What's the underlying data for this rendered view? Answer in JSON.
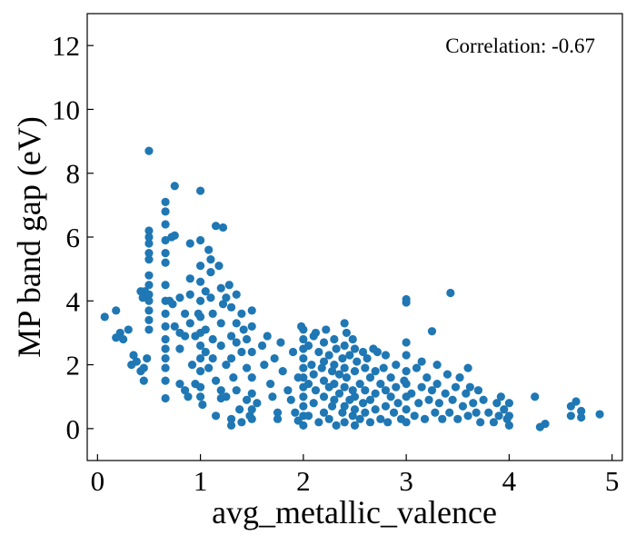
{
  "chart_data": {
    "type": "scatter",
    "title": "",
    "xlabel": "avg_metallic_valence",
    "ylabel": "MP band gap (eV)",
    "annotation": "Correlation: -0.67",
    "xlim": [
      -0.1,
      5.1
    ],
    "ylim": [
      -1,
      13
    ],
    "xticks": [
      0,
      1,
      2,
      3,
      4,
      5
    ],
    "yticks": [
      0,
      2,
      4,
      6,
      8,
      10,
      12
    ],
    "grid": false,
    "marker_color": "#1f77b4",
    "series": [
      {
        "points": [
          [
            0.07,
            3.5
          ],
          [
            0.18,
            2.85
          ],
          [
            0.18,
            3.7
          ],
          [
            0.22,
            3.0
          ],
          [
            0.25,
            2.8
          ],
          [
            0.3,
            3.1
          ],
          [
            0.33,
            2.0
          ],
          [
            0.35,
            2.3
          ],
          [
            0.38,
            2.1
          ],
          [
            0.42,
            1.8
          ],
          [
            0.45,
            1.5
          ],
          [
            0.45,
            1.9
          ],
          [
            0.48,
            2.2
          ],
          [
            0.5,
            8.7
          ],
          [
            0.42,
            4.3
          ],
          [
            0.44,
            4.1
          ],
          [
            0.46,
            4.3
          ],
          [
            0.5,
            4.2
          ],
          [
            0.5,
            4.0
          ],
          [
            0.5,
            3.7
          ],
          [
            0.5,
            3.4
          ],
          [
            0.5,
            3.1
          ],
          [
            0.5,
            5.5
          ],
          [
            0.5,
            5.8
          ],
          [
            0.5,
            6.0
          ],
          [
            0.5,
            6.2
          ],
          [
            0.5,
            5.3
          ],
          [
            0.5,
            4.8
          ],
          [
            0.5,
            4.5
          ],
          [
            0.66,
            7.1
          ],
          [
            0.66,
            6.8
          ],
          [
            0.66,
            6.4
          ],
          [
            0.66,
            5.9
          ],
          [
            0.66,
            5.5
          ],
          [
            0.66,
            5.2
          ],
          [
            0.66,
            4.5
          ],
          [
            0.66,
            4.0
          ],
          [
            0.66,
            3.6
          ],
          [
            0.66,
            3.2
          ],
          [
            0.66,
            2.8
          ],
          [
            0.66,
            2.5
          ],
          [
            0.66,
            2.2
          ],
          [
            0.66,
            1.9
          ],
          [
            0.66,
            1.5
          ],
          [
            0.66,
            0.95
          ],
          [
            0.75,
            7.6
          ],
          [
            0.72,
            6.0
          ],
          [
            0.75,
            6.05
          ],
          [
            0.7,
            4.0
          ],
          [
            0.73,
            3.9
          ],
          [
            0.75,
            3.2
          ],
          [
            0.8,
            4.1
          ],
          [
            0.8,
            3.0
          ],
          [
            0.8,
            2.5
          ],
          [
            0.8,
            1.4
          ],
          [
            0.85,
            1.2
          ],
          [
            0.85,
            3.6
          ],
          [
            0.85,
            2.9
          ],
          [
            0.88,
            1.0
          ],
          [
            0.9,
            3.3
          ],
          [
            0.9,
            5.8
          ],
          [
            0.9,
            4.7
          ],
          [
            0.9,
            4.2
          ],
          [
            0.92,
            2.0
          ],
          [
            0.95,
            1.4
          ],
          [
            0.95,
            2.9
          ],
          [
            0.98,
            3.6
          ],
          [
            1.0,
            7.45
          ],
          [
            1.0,
            5.9
          ],
          [
            1.0,
            5.1
          ],
          [
            1.0,
            4.6
          ],
          [
            1.0,
            4.0
          ],
          [
            1.0,
            3.5
          ],
          [
            1.0,
            3.0
          ],
          [
            1.0,
            2.6
          ],
          [
            1.0,
            2.2
          ],
          [
            1.0,
            1.8
          ],
          [
            1.0,
            1.3
          ],
          [
            1.0,
            1.0
          ],
          [
            1.02,
            0.75
          ],
          [
            1.05,
            4.3
          ],
          [
            1.05,
            3.1
          ],
          [
            1.05,
            2.4
          ],
          [
            1.08,
            1.9
          ],
          [
            1.08,
            5.6
          ],
          [
            1.1,
            5.3
          ],
          [
            1.1,
            4.9
          ],
          [
            1.1,
            4.1
          ],
          [
            1.12,
            3.6
          ],
          [
            1.12,
            2.8
          ],
          [
            1.12,
            2.2
          ],
          [
            1.15,
            1.5
          ],
          [
            1.15,
            0.4
          ],
          [
            1.15,
            6.35
          ],
          [
            1.18,
            5.1
          ],
          [
            1.2,
            4.4
          ],
          [
            1.2,
            3.3
          ],
          [
            1.2,
            2.6
          ],
          [
            1.2,
            1.2
          ],
          [
            1.2,
            0.95
          ],
          [
            1.22,
            6.3
          ],
          [
            1.22,
            3.9
          ],
          [
            1.25,
            4.1
          ],
          [
            1.25,
            2.0
          ],
          [
            1.25,
            1.0
          ],
          [
            1.28,
            4.5
          ],
          [
            1.3,
            3.8
          ],
          [
            1.3,
            2.9
          ],
          [
            1.3,
            2.2
          ],
          [
            1.3,
            0.3
          ],
          [
            1.3,
            0.1
          ],
          [
            1.32,
            1.6
          ],
          [
            1.35,
            4.2
          ],
          [
            1.35,
            3.3
          ],
          [
            1.35,
            2.7
          ],
          [
            1.35,
            1.2
          ],
          [
            1.38,
            0.6
          ],
          [
            1.4,
            3.6
          ],
          [
            1.4,
            2.4
          ],
          [
            1.4,
            0.2
          ],
          [
            1.42,
            3.1
          ],
          [
            1.45,
            2.8
          ],
          [
            1.45,
            1.9
          ],
          [
            1.45,
            0.9
          ],
          [
            1.48,
            0.4
          ],
          [
            1.5,
            3.7
          ],
          [
            1.5,
            3.2
          ],
          [
            1.5,
            2.4
          ],
          [
            1.5,
            1.6
          ],
          [
            1.5,
            1.1
          ],
          [
            1.5,
            0.6
          ],
          [
            1.5,
            0.3
          ],
          [
            1.55,
            0.8
          ],
          [
            1.6,
            2.6
          ],
          [
            1.62,
            2.0
          ],
          [
            1.65,
            2.9
          ],
          [
            1.68,
            1.4
          ],
          [
            1.7,
            1.0
          ],
          [
            1.72,
            2.2
          ],
          [
            1.75,
            0.5
          ],
          [
            1.75,
            0.3
          ],
          [
            1.78,
            2.7
          ],
          [
            1.8,
            1.8
          ],
          [
            1.85,
            1.2
          ],
          [
            1.88,
            0.9
          ],
          [
            1.9,
            2.4
          ],
          [
            1.92,
            0.5
          ],
          [
            1.95,
            1.6
          ],
          [
            1.95,
            0.25
          ],
          [
            1.98,
            3.2
          ],
          [
            2.0,
            3.1
          ],
          [
            2.0,
            2.8
          ],
          [
            2.0,
            2.5
          ],
          [
            2.0,
            2.2
          ],
          [
            2.0,
            1.9
          ],
          [
            2.0,
            1.6
          ],
          [
            2.0,
            1.3
          ],
          [
            2.0,
            1.0
          ],
          [
            2.0,
            0.7
          ],
          [
            2.0,
            0.4
          ],
          [
            2.0,
            0.1
          ],
          [
            2.05,
            2.6
          ],
          [
            2.05,
            1.4
          ],
          [
            2.05,
            0.4
          ],
          [
            2.08,
            2.0
          ],
          [
            2.1,
            2.9
          ],
          [
            2.1,
            1.7
          ],
          [
            2.1,
            0.8
          ],
          [
            2.12,
            3.0
          ],
          [
            2.12,
            1.2
          ],
          [
            2.15,
            2.4
          ],
          [
            2.15,
            0.2
          ],
          [
            2.18,
            1.9
          ],
          [
            2.2,
            2.7
          ],
          [
            2.2,
            2.1
          ],
          [
            2.2,
            1.5
          ],
          [
            2.2,
            1.0
          ],
          [
            2.2,
            0.5
          ],
          [
            2.22,
            3.1
          ],
          [
            2.25,
            2.3
          ],
          [
            2.25,
            1.3
          ],
          [
            2.25,
            0.3
          ],
          [
            2.28,
            1.8
          ],
          [
            2.28,
            0.7
          ],
          [
            2.3,
            2.8
          ],
          [
            2.3,
            2.0
          ],
          [
            2.3,
            1.4
          ],
          [
            2.3,
            0.9
          ],
          [
            2.32,
            2.5
          ],
          [
            2.32,
            0.1
          ],
          [
            2.35,
            1.7
          ],
          [
            2.35,
            1.1
          ],
          [
            2.38,
            2.2
          ],
          [
            2.38,
            0.5
          ],
          [
            2.4,
            3.3
          ],
          [
            2.4,
            2.6
          ],
          [
            2.4,
            1.9
          ],
          [
            2.4,
            1.3
          ],
          [
            2.4,
            0.7
          ],
          [
            2.4,
            0.2
          ],
          [
            2.42,
            3.0
          ],
          [
            2.42,
            1.6
          ],
          [
            2.45,
            2.3
          ],
          [
            2.45,
            0.9
          ],
          [
            2.48,
            2.8
          ],
          [
            2.48,
            1.2
          ],
          [
            2.48,
            0.4
          ],
          [
            2.5,
            2.5
          ],
          [
            2.5,
            1.8
          ],
          [
            2.5,
            1.0
          ],
          [
            2.5,
            0.6
          ],
          [
            2.5,
            0.1
          ],
          [
            2.52,
            2.1
          ],
          [
            2.55,
            1.4
          ],
          [
            2.55,
            0.3
          ],
          [
            2.58,
            2.4
          ],
          [
            2.58,
            0.8
          ],
          [
            2.6,
            1.9
          ],
          [
            2.6,
            1.2
          ],
          [
            2.6,
            0.5
          ],
          [
            2.62,
            2.2
          ],
          [
            2.65,
            1.6
          ],
          [
            2.65,
            0.9
          ],
          [
            2.65,
            0.2
          ],
          [
            2.68,
            2.5
          ],
          [
            2.7,
            1.8
          ],
          [
            2.7,
            1.1
          ],
          [
            2.7,
            0.6
          ],
          [
            2.72,
            2.4
          ],
          [
            2.75,
            1.4
          ],
          [
            2.75,
            0.3
          ],
          [
            2.78,
            1.9
          ],
          [
            2.8,
            2.3
          ],
          [
            2.8,
            1.2
          ],
          [
            2.8,
            0.7
          ],
          [
            2.82,
            0.2
          ],
          [
            2.85,
            1.6
          ],
          [
            2.85,
            1.0
          ],
          [
            2.88,
            0.5
          ],
          [
            2.9,
            2.0
          ],
          [
            2.9,
            1.3
          ],
          [
            2.92,
            0.8
          ],
          [
            2.95,
            0.3
          ],
          [
            2.98,
            1.5
          ],
          [
            3.0,
            4.05
          ],
          [
            3.0,
            3.95
          ],
          [
            3.0,
            2.7
          ],
          [
            3.0,
            2.3
          ],
          [
            3.0,
            1.8
          ],
          [
            3.0,
            1.4
          ],
          [
            3.0,
            1.0
          ],
          [
            3.0,
            0.6
          ],
          [
            3.0,
            0.2
          ],
          [
            3.05,
            1.1
          ],
          [
            3.08,
            0.4
          ],
          [
            3.1,
            1.9
          ],
          [
            3.12,
            0.8
          ],
          [
            3.15,
            2.1
          ],
          [
            3.15,
            1.3
          ],
          [
            3.18,
            0.3
          ],
          [
            3.2,
            1.6
          ],
          [
            3.22,
            0.9
          ],
          [
            3.25,
            3.05
          ],
          [
            3.25,
            1.2
          ],
          [
            3.28,
            0.5
          ],
          [
            3.3,
            2.0
          ],
          [
            3.3,
            1.4
          ],
          [
            3.32,
            0.8
          ],
          [
            3.35,
            0.3
          ],
          [
            3.38,
            1.1
          ],
          [
            3.4,
            1.7
          ],
          [
            3.42,
            0.5
          ],
          [
            3.43,
            4.25
          ],
          [
            3.45,
            0.9
          ],
          [
            3.48,
            1.3
          ],
          [
            3.5,
            0.3
          ],
          [
            3.52,
            1.6
          ],
          [
            3.55,
            0.7
          ],
          [
            3.58,
            1.1
          ],
          [
            3.6,
            0.4
          ],
          [
            3.6,
            1.9
          ],
          [
            3.62,
            1.3
          ],
          [
            3.65,
            0.8
          ],
          [
            3.68,
            0.5
          ],
          [
            3.7,
            1.2
          ],
          [
            3.72,
            0.2
          ],
          [
            3.75,
            0.9
          ],
          [
            3.8,
            0.5
          ],
          [
            3.85,
            0.2
          ],
          [
            3.88,
            0.8
          ],
          [
            3.9,
            0.4
          ],
          [
            3.92,
            1.0
          ],
          [
            3.95,
            0.6
          ],
          [
            3.98,
            0.3
          ],
          [
            4.0,
            0.8
          ],
          [
            4.0,
            0.4
          ],
          [
            4.0,
            0.1
          ],
          [
            4.25,
            1.0
          ],
          [
            4.3,
            0.05
          ],
          [
            4.35,
            0.15
          ],
          [
            4.6,
            0.7
          ],
          [
            4.6,
            0.4
          ],
          [
            4.65,
            0.85
          ],
          [
            4.7,
            0.55
          ],
          [
            4.7,
            0.35
          ],
          [
            4.88,
            0.45
          ]
        ]
      }
    ]
  }
}
